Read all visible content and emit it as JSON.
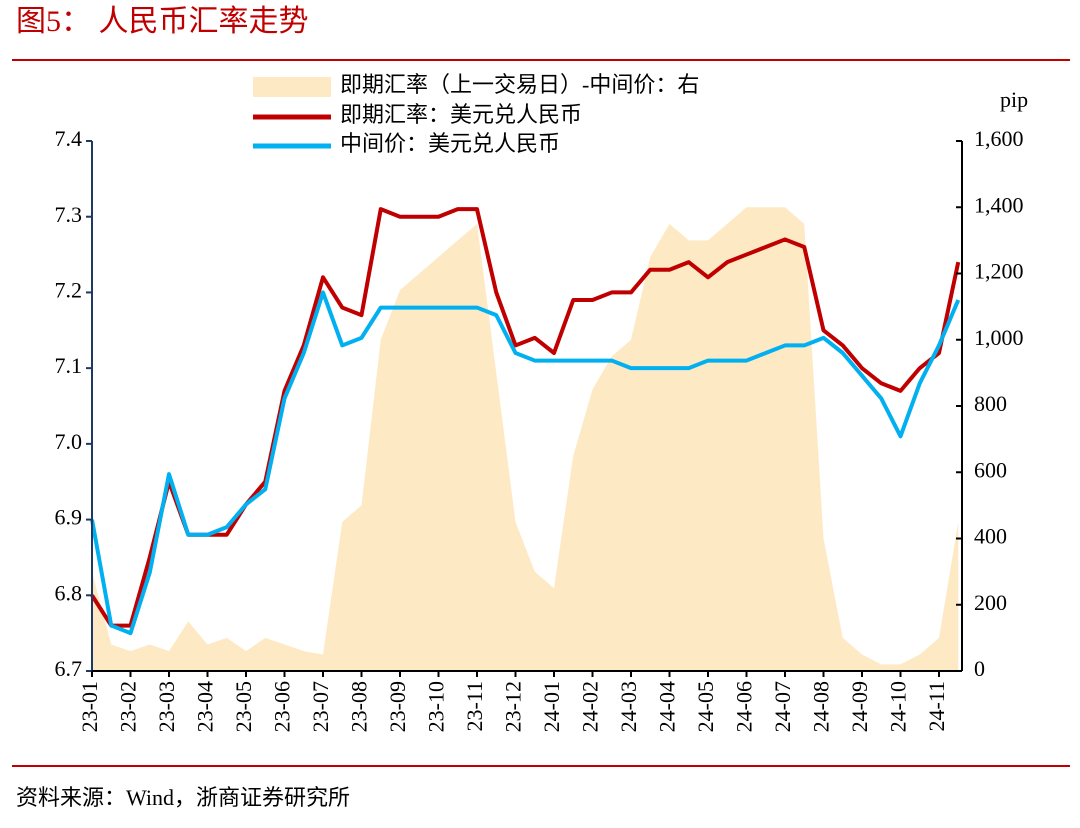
{
  "chart_data": {
    "type": "line",
    "title": "图5： 人民币汇率走势",
    "source": "资料来源：Wind，浙商证券研究所",
    "y2_label": "pip",
    "categories": [
      "23-01",
      null,
      "23-02",
      null,
      "23-03",
      null,
      "23-04",
      null,
      "23-05",
      null,
      "23-06",
      null,
      "23-07",
      null,
      "23-08",
      null,
      "23-09",
      null,
      "23-10",
      null,
      "23-11",
      null,
      "23-12",
      null,
      "24-01",
      null,
      "24-02",
      null,
      "24-03",
      null,
      "24-04",
      null,
      "24-05",
      null,
      "24-06",
      null,
      "24-07",
      null,
      "24-08",
      null,
      "24-09",
      null,
      "24-10",
      null,
      "24-11",
      null
    ],
    "series": [
      {
        "name": "即期汇率（上一交易日）-中间价：右",
        "type": "area",
        "axis": "y2",
        "color": "#fde9c4",
        "values": [
          300,
          80,
          60,
          80,
          60,
          150,
          80,
          100,
          60,
          100,
          80,
          60,
          50,
          450,
          500,
          1000,
          1150,
          1200,
          1250,
          1300,
          1350,
          900,
          450,
          300,
          250,
          650,
          850,
          950,
          1000,
          1250,
          1350,
          1300,
          1300,
          1350,
          1400,
          1400,
          1400,
          1350,
          400,
          100,
          50,
          20,
          20,
          50,
          100,
          450
        ]
      },
      {
        "name": "即期汇率：美元兑人民币",
        "type": "line",
        "color": "#c00000",
        "values": [
          6.8,
          6.76,
          6.76,
          6.85,
          6.95,
          6.88,
          6.88,
          6.88,
          6.92,
          6.95,
          7.07,
          7.13,
          7.22,
          7.18,
          7.17,
          7.31,
          7.3,
          7.3,
          7.3,
          7.31,
          7.31,
          7.2,
          7.13,
          7.14,
          7.12,
          7.19,
          7.19,
          7.2,
          7.2,
          7.23,
          7.23,
          7.24,
          7.22,
          7.24,
          7.25,
          7.26,
          7.27,
          7.26,
          7.15,
          7.13,
          7.1,
          7.08,
          7.07,
          7.1,
          7.12,
          7.24
        ]
      },
      {
        "name": "中间价：美元兑人民币",
        "type": "line",
        "color": "#00b0f0",
        "values": [
          6.9,
          6.76,
          6.75,
          6.83,
          6.96,
          6.88,
          6.88,
          6.89,
          6.92,
          6.94,
          7.06,
          7.12,
          7.2,
          7.13,
          7.14,
          7.18,
          7.18,
          7.18,
          7.18,
          7.18,
          7.18,
          7.17,
          7.12,
          7.11,
          7.11,
          7.11,
          7.11,
          7.11,
          7.1,
          7.1,
          7.1,
          7.1,
          7.11,
          7.11,
          7.11,
          7.12,
          7.13,
          7.13,
          7.14,
          7.12,
          7.09,
          7.06,
          7.01,
          7.08,
          7.13,
          7.19
        ]
      }
    ],
    "ylim": [
      6.7,
      7.4
    ],
    "yticks": [
      6.7,
      6.8,
      6.9,
      {
        "value": 7,
        "label": "7.0"
      },
      7.1,
      7.2,
      7.3,
      7.4
    ],
    "y2lim": [
      0,
      1600
    ],
    "y2ticks": [
      0,
      200,
      400,
      600,
      800,
      {
        "value": 1000,
        "label": "1,000"
      },
      {
        "value": 1200,
        "label": "1,200"
      },
      {
        "value": 1400,
        "label": "1,400"
      },
      {
        "value": 1600,
        "label": "1,600"
      }
    ]
  }
}
